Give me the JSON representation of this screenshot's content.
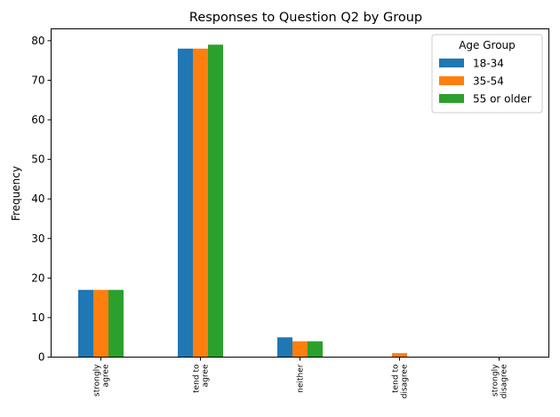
{
  "chart_data": {
    "type": "bar",
    "title": "Responses to Question Q2 by Group",
    "xlabel": "",
    "ylabel": "Frequency",
    "categories": [
      [
        "strongly",
        "agree"
      ],
      [
        "tend to",
        "agree"
      ],
      [
        "neither"
      ],
      [
        "tend to",
        "disagree"
      ],
      [
        "strongly",
        "disagree"
      ]
    ],
    "series": [
      {
        "name": "18-34",
        "color": "#1f77b4",
        "values": [
          17,
          78,
          5,
          0,
          0
        ]
      },
      {
        "name": "35-54",
        "color": "#ff7f0e",
        "values": [
          17,
          78,
          4,
          1,
          0
        ]
      },
      {
        "name": "55 or older",
        "color": "#2ca02c",
        "values": [
          17,
          79,
          4,
          0,
          0
        ]
      }
    ],
    "ylim": [
      0,
      83
    ],
    "yticks": [
      0,
      10,
      20,
      30,
      40,
      50,
      60,
      70,
      80
    ],
    "grid": false,
    "legend": {
      "title": "Age Group",
      "placement": "top-right"
    }
  }
}
